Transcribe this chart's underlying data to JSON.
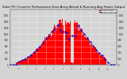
{
  "title": "Solar PV / Inverter Performance East Array Actual & Running Avg Power Output",
  "title_fontsize": 2.8,
  "bg_color": "#d4d4d4",
  "plot_bg_color": "#d4d4d4",
  "bar_color": "#ff0000",
  "avg_color": "#0000cc",
  "grid_color": "#ffffff",
  "y_max": 1800,
  "num_bars": 144,
  "legend_actual": "Actual Output",
  "legend_avg": "Running Average"
}
